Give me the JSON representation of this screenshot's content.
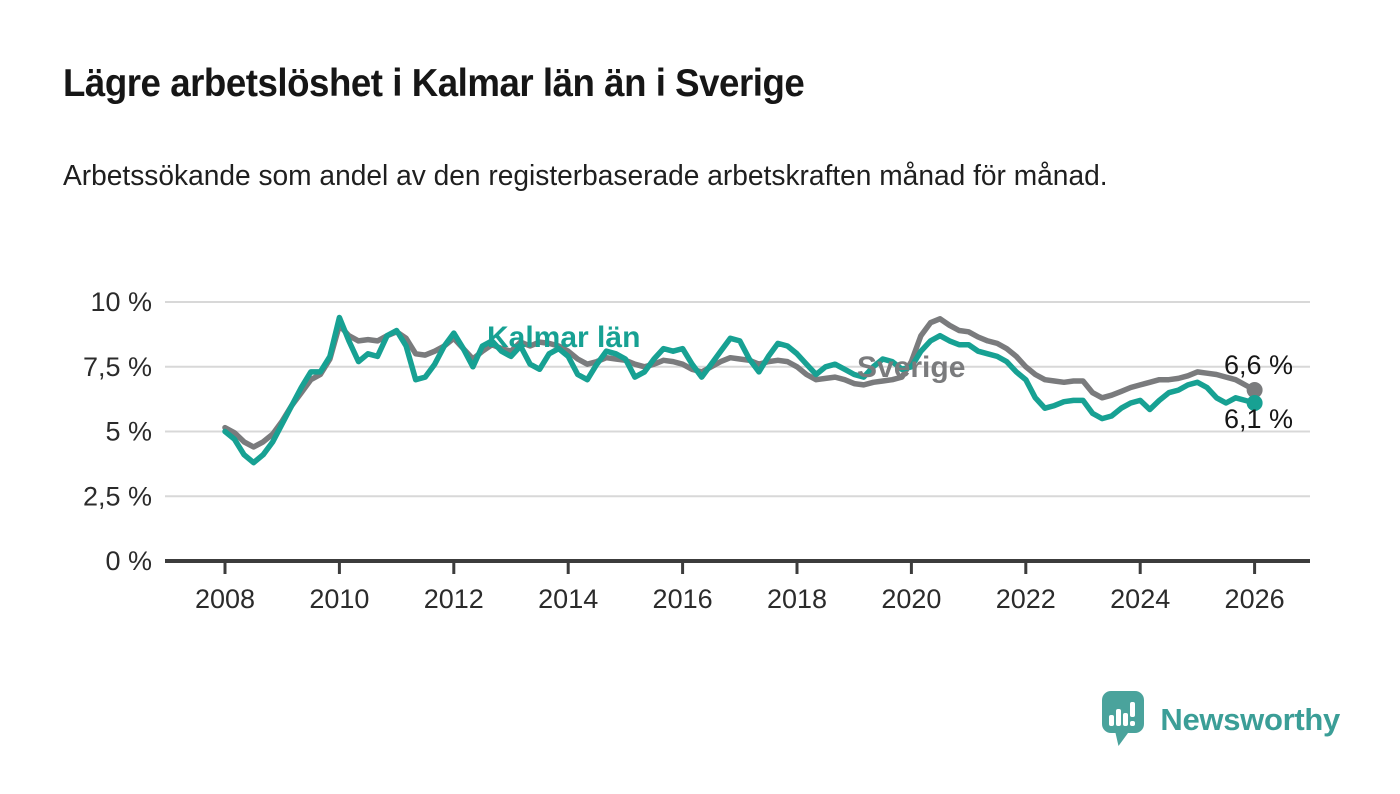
{
  "header": {
    "title": "Lägre arbetslöshet i Kalmar län än i Sverige",
    "subtitle": "Arbetssökande som andel av den registerbaserade arbetskraften månad för månad."
  },
  "chart_data": {
    "type": "line",
    "unit": "%",
    "title": "Lägre arbetslöshet i Kalmar län än i Sverige",
    "xlabel": "",
    "ylabel": "",
    "ylim": [
      0,
      10
    ],
    "xlim": [
      2008,
      2026.1
    ],
    "grid": "horizontal",
    "x_start_year": 2008,
    "x_step_years": 0.16667,
    "yticks": [
      {
        "value": 0,
        "label": "0 %"
      },
      {
        "value": 2.5,
        "label": "2,5 %"
      },
      {
        "value": 5,
        "label": "5 %"
      },
      {
        "value": 7.5,
        "label": "7,5 %"
      },
      {
        "value": 10,
        "label": "10 %"
      }
    ],
    "xticks": [
      {
        "value": 2008,
        "label": "2008"
      },
      {
        "value": 2010,
        "label": "2010"
      },
      {
        "value": 2012,
        "label": "2012"
      },
      {
        "value": 2014,
        "label": "2014"
      },
      {
        "value": 2016,
        "label": "2016"
      },
      {
        "value": 2018,
        "label": "2018"
      },
      {
        "value": 2020,
        "label": "2020"
      },
      {
        "value": 2022,
        "label": "2022"
      },
      {
        "value": 2024,
        "label": "2024"
      },
      {
        "value": 2026,
        "label": "2026"
      }
    ],
    "series": [
      {
        "name": "Sverige",
        "color": "#7a7b7d",
        "end_value": 6.6,
        "end_label": "6,6 %",
        "values": [
          5.15,
          4.95,
          4.6,
          4.4,
          4.6,
          4.9,
          5.4,
          6.0,
          6.5,
          7.0,
          7.2,
          7.8,
          9.1,
          8.7,
          8.5,
          8.55,
          8.5,
          8.7,
          8.85,
          8.6,
          8.0,
          7.95,
          8.1,
          8.3,
          8.6,
          8.2,
          7.8,
          8.1,
          8.35,
          8.2,
          8.1,
          8.45,
          8.3,
          8.45,
          8.4,
          8.3,
          8.1,
          7.8,
          7.6,
          7.7,
          7.85,
          7.8,
          7.75,
          7.6,
          7.5,
          7.6,
          7.75,
          7.7,
          7.6,
          7.4,
          7.3,
          7.5,
          7.7,
          7.85,
          7.8,
          7.75,
          7.6,
          7.7,
          7.75,
          7.7,
          7.5,
          7.2,
          7.0,
          7.05,
          7.1,
          7.0,
          6.85,
          6.8,
          6.9,
          6.95,
          7.0,
          7.1,
          7.7,
          8.7,
          9.2,
          9.35,
          9.1,
          8.9,
          8.85,
          8.65,
          8.5,
          8.4,
          8.2,
          7.9,
          7.5,
          7.2,
          7.0,
          6.95,
          6.9,
          6.95,
          6.95,
          6.5,
          6.3,
          6.4,
          6.55,
          6.7,
          6.8,
          6.9,
          7.0,
          7.0,
          7.05,
          7.15,
          7.3,
          7.25,
          7.2,
          7.1,
          7.0,
          6.8,
          6.6
        ]
      },
      {
        "name": "Kalmar län",
        "color": "#17a193",
        "end_value": 6.1,
        "end_label": "6,1 %",
        "values": [
          5.0,
          4.7,
          4.1,
          3.8,
          4.1,
          4.6,
          5.3,
          6.0,
          6.7,
          7.3,
          7.3,
          7.9,
          9.4,
          8.5,
          7.7,
          8.0,
          7.9,
          8.7,
          8.9,
          8.3,
          7.0,
          7.1,
          7.6,
          8.3,
          8.8,
          8.2,
          7.5,
          8.3,
          8.5,
          8.1,
          7.9,
          8.3,
          7.6,
          7.4,
          8.0,
          8.2,
          7.9,
          7.2,
          7.0,
          7.6,
          8.1,
          8.0,
          7.8,
          7.1,
          7.3,
          7.8,
          8.2,
          8.1,
          8.2,
          7.6,
          7.1,
          7.6,
          8.1,
          8.6,
          8.5,
          7.8,
          7.3,
          7.9,
          8.4,
          8.3,
          8.0,
          7.6,
          7.2,
          7.5,
          7.6,
          7.4,
          7.2,
          7.1,
          7.5,
          7.8,
          7.7,
          7.4,
          7.5,
          8.1,
          8.5,
          8.7,
          8.5,
          8.35,
          8.35,
          8.1,
          8.0,
          7.9,
          7.7,
          7.3,
          7.0,
          6.3,
          5.9,
          6.0,
          6.15,
          6.2,
          6.2,
          5.7,
          5.5,
          5.6,
          5.9,
          6.1,
          6.2,
          5.85,
          6.2,
          6.5,
          6.6,
          6.8,
          6.9,
          6.7,
          6.3,
          6.1,
          6.3,
          6.2,
          6.1
        ]
      }
    ],
    "legend_position": "inline-labels"
  },
  "footer": {
    "brand": "Newsworthy",
    "logo_icon": "newsworthy-speech-bubble-chart-icon",
    "brand_color": "#3b9e97"
  }
}
